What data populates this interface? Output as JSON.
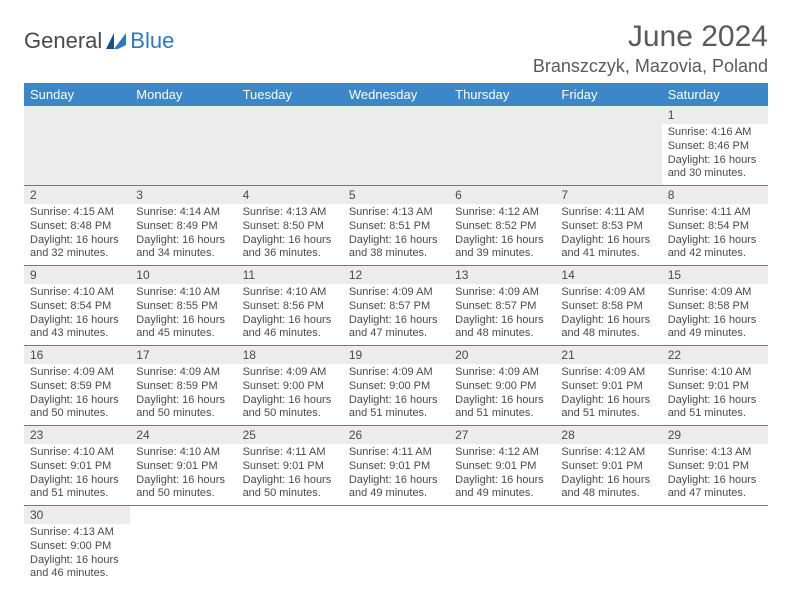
{
  "header": {
    "logo_general": "General",
    "logo_blue": "Blue",
    "month_title": "June 2024",
    "location": "Branszczyk, Mazovia, Poland"
  },
  "colors": {
    "header_bg": "#3b87c8",
    "header_text": "#ffffff",
    "daynum_bg": "#ececec",
    "text": "#4a4a4a",
    "border": "#3b87c8",
    "logo_blue": "#2a7ac0"
  },
  "daynames": [
    "Sunday",
    "Monday",
    "Tuesday",
    "Wednesday",
    "Thursday",
    "Friday",
    "Saturday"
  ],
  "weeks": [
    [
      null,
      null,
      null,
      null,
      null,
      null,
      {
        "n": "1",
        "sr": "Sunrise: 4:16 AM",
        "ss": "Sunset: 8:46 PM",
        "d1": "Daylight: 16 hours",
        "d2": "and 30 minutes."
      }
    ],
    [
      {
        "n": "2",
        "sr": "Sunrise: 4:15 AM",
        "ss": "Sunset: 8:48 PM",
        "d1": "Daylight: 16 hours",
        "d2": "and 32 minutes."
      },
      {
        "n": "3",
        "sr": "Sunrise: 4:14 AM",
        "ss": "Sunset: 8:49 PM",
        "d1": "Daylight: 16 hours",
        "d2": "and 34 minutes."
      },
      {
        "n": "4",
        "sr": "Sunrise: 4:13 AM",
        "ss": "Sunset: 8:50 PM",
        "d1": "Daylight: 16 hours",
        "d2": "and 36 minutes."
      },
      {
        "n": "5",
        "sr": "Sunrise: 4:13 AM",
        "ss": "Sunset: 8:51 PM",
        "d1": "Daylight: 16 hours",
        "d2": "and 38 minutes."
      },
      {
        "n": "6",
        "sr": "Sunrise: 4:12 AM",
        "ss": "Sunset: 8:52 PM",
        "d1": "Daylight: 16 hours",
        "d2": "and 39 minutes."
      },
      {
        "n": "7",
        "sr": "Sunrise: 4:11 AM",
        "ss": "Sunset: 8:53 PM",
        "d1": "Daylight: 16 hours",
        "d2": "and 41 minutes."
      },
      {
        "n": "8",
        "sr": "Sunrise: 4:11 AM",
        "ss": "Sunset: 8:54 PM",
        "d1": "Daylight: 16 hours",
        "d2": "and 42 minutes."
      }
    ],
    [
      {
        "n": "9",
        "sr": "Sunrise: 4:10 AM",
        "ss": "Sunset: 8:54 PM",
        "d1": "Daylight: 16 hours",
        "d2": "and 43 minutes."
      },
      {
        "n": "10",
        "sr": "Sunrise: 4:10 AM",
        "ss": "Sunset: 8:55 PM",
        "d1": "Daylight: 16 hours",
        "d2": "and 45 minutes."
      },
      {
        "n": "11",
        "sr": "Sunrise: 4:10 AM",
        "ss": "Sunset: 8:56 PM",
        "d1": "Daylight: 16 hours",
        "d2": "and 46 minutes."
      },
      {
        "n": "12",
        "sr": "Sunrise: 4:09 AM",
        "ss": "Sunset: 8:57 PM",
        "d1": "Daylight: 16 hours",
        "d2": "and 47 minutes."
      },
      {
        "n": "13",
        "sr": "Sunrise: 4:09 AM",
        "ss": "Sunset: 8:57 PM",
        "d1": "Daylight: 16 hours",
        "d2": "and 48 minutes."
      },
      {
        "n": "14",
        "sr": "Sunrise: 4:09 AM",
        "ss": "Sunset: 8:58 PM",
        "d1": "Daylight: 16 hours",
        "d2": "and 48 minutes."
      },
      {
        "n": "15",
        "sr": "Sunrise: 4:09 AM",
        "ss": "Sunset: 8:58 PM",
        "d1": "Daylight: 16 hours",
        "d2": "and 49 minutes."
      }
    ],
    [
      {
        "n": "16",
        "sr": "Sunrise: 4:09 AM",
        "ss": "Sunset: 8:59 PM",
        "d1": "Daylight: 16 hours",
        "d2": "and 50 minutes."
      },
      {
        "n": "17",
        "sr": "Sunrise: 4:09 AM",
        "ss": "Sunset: 8:59 PM",
        "d1": "Daylight: 16 hours",
        "d2": "and 50 minutes."
      },
      {
        "n": "18",
        "sr": "Sunrise: 4:09 AM",
        "ss": "Sunset: 9:00 PM",
        "d1": "Daylight: 16 hours",
        "d2": "and 50 minutes."
      },
      {
        "n": "19",
        "sr": "Sunrise: 4:09 AM",
        "ss": "Sunset: 9:00 PM",
        "d1": "Daylight: 16 hours",
        "d2": "and 51 minutes."
      },
      {
        "n": "20",
        "sr": "Sunrise: 4:09 AM",
        "ss": "Sunset: 9:00 PM",
        "d1": "Daylight: 16 hours",
        "d2": "and 51 minutes."
      },
      {
        "n": "21",
        "sr": "Sunrise: 4:09 AM",
        "ss": "Sunset: 9:01 PM",
        "d1": "Daylight: 16 hours",
        "d2": "and 51 minutes."
      },
      {
        "n": "22",
        "sr": "Sunrise: 4:10 AM",
        "ss": "Sunset: 9:01 PM",
        "d1": "Daylight: 16 hours",
        "d2": "and 51 minutes."
      }
    ],
    [
      {
        "n": "23",
        "sr": "Sunrise: 4:10 AM",
        "ss": "Sunset: 9:01 PM",
        "d1": "Daylight: 16 hours",
        "d2": "and 51 minutes."
      },
      {
        "n": "24",
        "sr": "Sunrise: 4:10 AM",
        "ss": "Sunset: 9:01 PM",
        "d1": "Daylight: 16 hours",
        "d2": "and 50 minutes."
      },
      {
        "n": "25",
        "sr": "Sunrise: 4:11 AM",
        "ss": "Sunset: 9:01 PM",
        "d1": "Daylight: 16 hours",
        "d2": "and 50 minutes."
      },
      {
        "n": "26",
        "sr": "Sunrise: 4:11 AM",
        "ss": "Sunset: 9:01 PM",
        "d1": "Daylight: 16 hours",
        "d2": "and 49 minutes."
      },
      {
        "n": "27",
        "sr": "Sunrise: 4:12 AM",
        "ss": "Sunset: 9:01 PM",
        "d1": "Daylight: 16 hours",
        "d2": "and 49 minutes."
      },
      {
        "n": "28",
        "sr": "Sunrise: 4:12 AM",
        "ss": "Sunset: 9:01 PM",
        "d1": "Daylight: 16 hours",
        "d2": "and 48 minutes."
      },
      {
        "n": "29",
        "sr": "Sunrise: 4:13 AM",
        "ss": "Sunset: 9:01 PM",
        "d1": "Daylight: 16 hours",
        "d2": "and 47 minutes."
      }
    ],
    [
      {
        "n": "30",
        "sr": "Sunrise: 4:13 AM",
        "ss": "Sunset: 9:00 PM",
        "d1": "Daylight: 16 hours",
        "d2": "and 46 minutes."
      },
      null,
      null,
      null,
      null,
      null,
      null
    ]
  ]
}
